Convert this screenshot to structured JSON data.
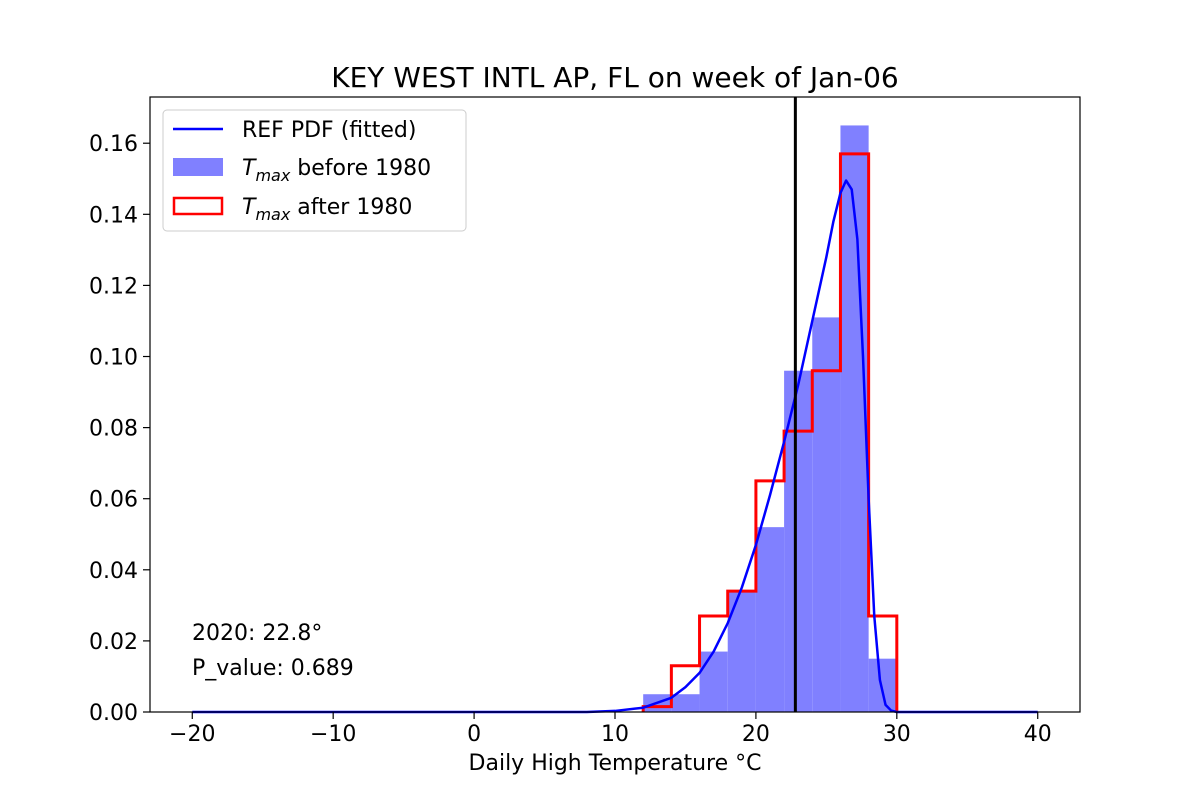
{
  "chart_data": {
    "type": "bar",
    "title": "KEY WEST INTL AP, FL on week of Jan-06",
    "xlabel": "Daily High Temperature °C",
    "ylabel": "",
    "xlim": [
      -23,
      43
    ],
    "ylim": [
      0,
      0.173
    ],
    "xticks": [
      -20,
      -10,
      0,
      10,
      20,
      30,
      40
    ],
    "xtick_labels": [
      "−20",
      "−10",
      "0",
      "10",
      "20",
      "30",
      "40"
    ],
    "yticks": [
      0.0,
      0.02,
      0.04,
      0.06,
      0.08,
      0.1,
      0.12,
      0.14,
      0.16
    ],
    "ytick_labels": [
      "0.00",
      "0.02",
      "0.04",
      "0.06",
      "0.08",
      "0.10",
      "0.12",
      "0.14",
      "0.16"
    ],
    "bin_edges": [
      12,
      14,
      16,
      18,
      20,
      22,
      24,
      26,
      28,
      30
    ],
    "series": [
      {
        "name": "T_max before 1980",
        "kind": "filled_histogram",
        "color": "#8080ff",
        "values": [
          0.005,
          0.005,
          0.017,
          0.034,
          0.052,
          0.096,
          0.111,
          0.165,
          0.015
        ]
      },
      {
        "name": "T_max after 1980",
        "kind": "step_histogram",
        "color": "#ff0000",
        "values": [
          0.0015,
          0.013,
          0.027,
          0.034,
          0.065,
          0.079,
          0.096,
          0.157,
          0.027
        ]
      },
      {
        "name": "REF PDF (fitted)",
        "kind": "line",
        "color": "#0000ff",
        "points": [
          [
            -20,
            0
          ],
          [
            8,
            0
          ],
          [
            10,
            0.0003
          ],
          [
            12,
            0.0012
          ],
          [
            14,
            0.004
          ],
          [
            15,
            0.007
          ],
          [
            16,
            0.011
          ],
          [
            17,
            0.017
          ],
          [
            18,
            0.025
          ],
          [
            19,
            0.035
          ],
          [
            20,
            0.047
          ],
          [
            21,
            0.061
          ],
          [
            22,
            0.076
          ],
          [
            23,
            0.092
          ],
          [
            24,
            0.11
          ],
          [
            25,
            0.128
          ],
          [
            25.5,
            0.138
          ],
          [
            26,
            0.146
          ],
          [
            26.4,
            0.1495
          ],
          [
            26.8,
            0.147
          ],
          [
            27.2,
            0.133
          ],
          [
            27.6,
            0.1
          ],
          [
            28,
            0.06
          ],
          [
            28.4,
            0.027
          ],
          [
            28.8,
            0.009
          ],
          [
            29.2,
            0.002
          ],
          [
            29.6,
            0.0004
          ],
          [
            30,
            0
          ],
          [
            40,
            0
          ]
        ]
      }
    ],
    "vline": {
      "x": 22.8,
      "color": "#000000"
    },
    "legend": {
      "position": "upper-left",
      "entries": [
        {
          "label_prefix": "REF PDF (fitted)",
          "label_sub": "",
          "label_suffix": "",
          "style": "line",
          "color": "#0000ff"
        },
        {
          "label_prefix": "T",
          "label_sub": "max",
          "label_suffix": " before 1980",
          "style": "fill",
          "color": "#8080ff"
        },
        {
          "label_prefix": "T",
          "label_sub": "max",
          "label_suffix": " after 1980",
          "style": "outline",
          "color": "#ff0000"
        }
      ]
    },
    "annotations": {
      "year_line": "2020: 22.8°",
      "pvalue_line": "P_value: 0.689"
    },
    "grid": false
  }
}
